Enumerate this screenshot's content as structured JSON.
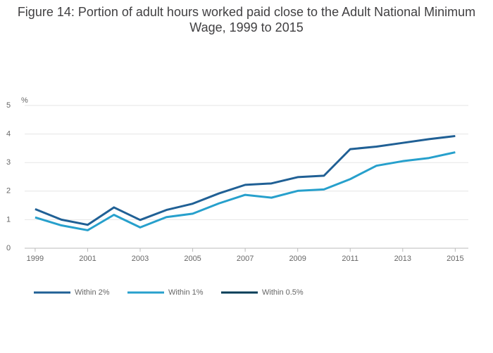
{
  "chart_data": {
    "type": "line",
    "title": "Figure 14: Portion of adult hours worked paid close to the Adult National Minimum Wage, 1999 to 2015",
    "y_label": "%",
    "x": [
      1999,
      2000,
      2001,
      2002,
      2003,
      2004,
      2005,
      2006,
      2007,
      2008,
      2009,
      2010,
      2011,
      2012,
      2013,
      2014,
      2015
    ],
    "series": [
      {
        "name": "Within 2%",
        "color": "#206095",
        "values": [
          1.37,
          1.0,
          0.82,
          1.43,
          0.99,
          1.34,
          1.56,
          1.92,
          2.22,
          2.27,
          2.49,
          2.54,
          3.47,
          3.56,
          3.69,
          3.82,
          3.93
        ]
      },
      {
        "name": "Within 1%",
        "color": "#27a0cc",
        "values": [
          1.08,
          0.8,
          0.63,
          1.17,
          0.73,
          1.09,
          1.21,
          1.57,
          1.87,
          1.77,
          2.01,
          2.06,
          2.42,
          2.89,
          3.05,
          3.16,
          3.36
        ]
      },
      {
        "name": "Within 0.5%",
        "color": "#003c57",
        "values": [
          null,
          null,
          null,
          null,
          null,
          null,
          null,
          null,
          null,
          null,
          null,
          null,
          null,
          null,
          null,
          null,
          null
        ]
      }
    ],
    "xlim": [
      1998.6,
      2015.5
    ],
    "xticks": [
      1999,
      2001,
      2003,
      2005,
      2007,
      2009,
      2011,
      2013,
      2015
    ],
    "ylim": [
      0,
      5
    ],
    "yticks": [
      0,
      1,
      2,
      3,
      4,
      5
    ],
    "grid": true,
    "legend": "bottom"
  }
}
